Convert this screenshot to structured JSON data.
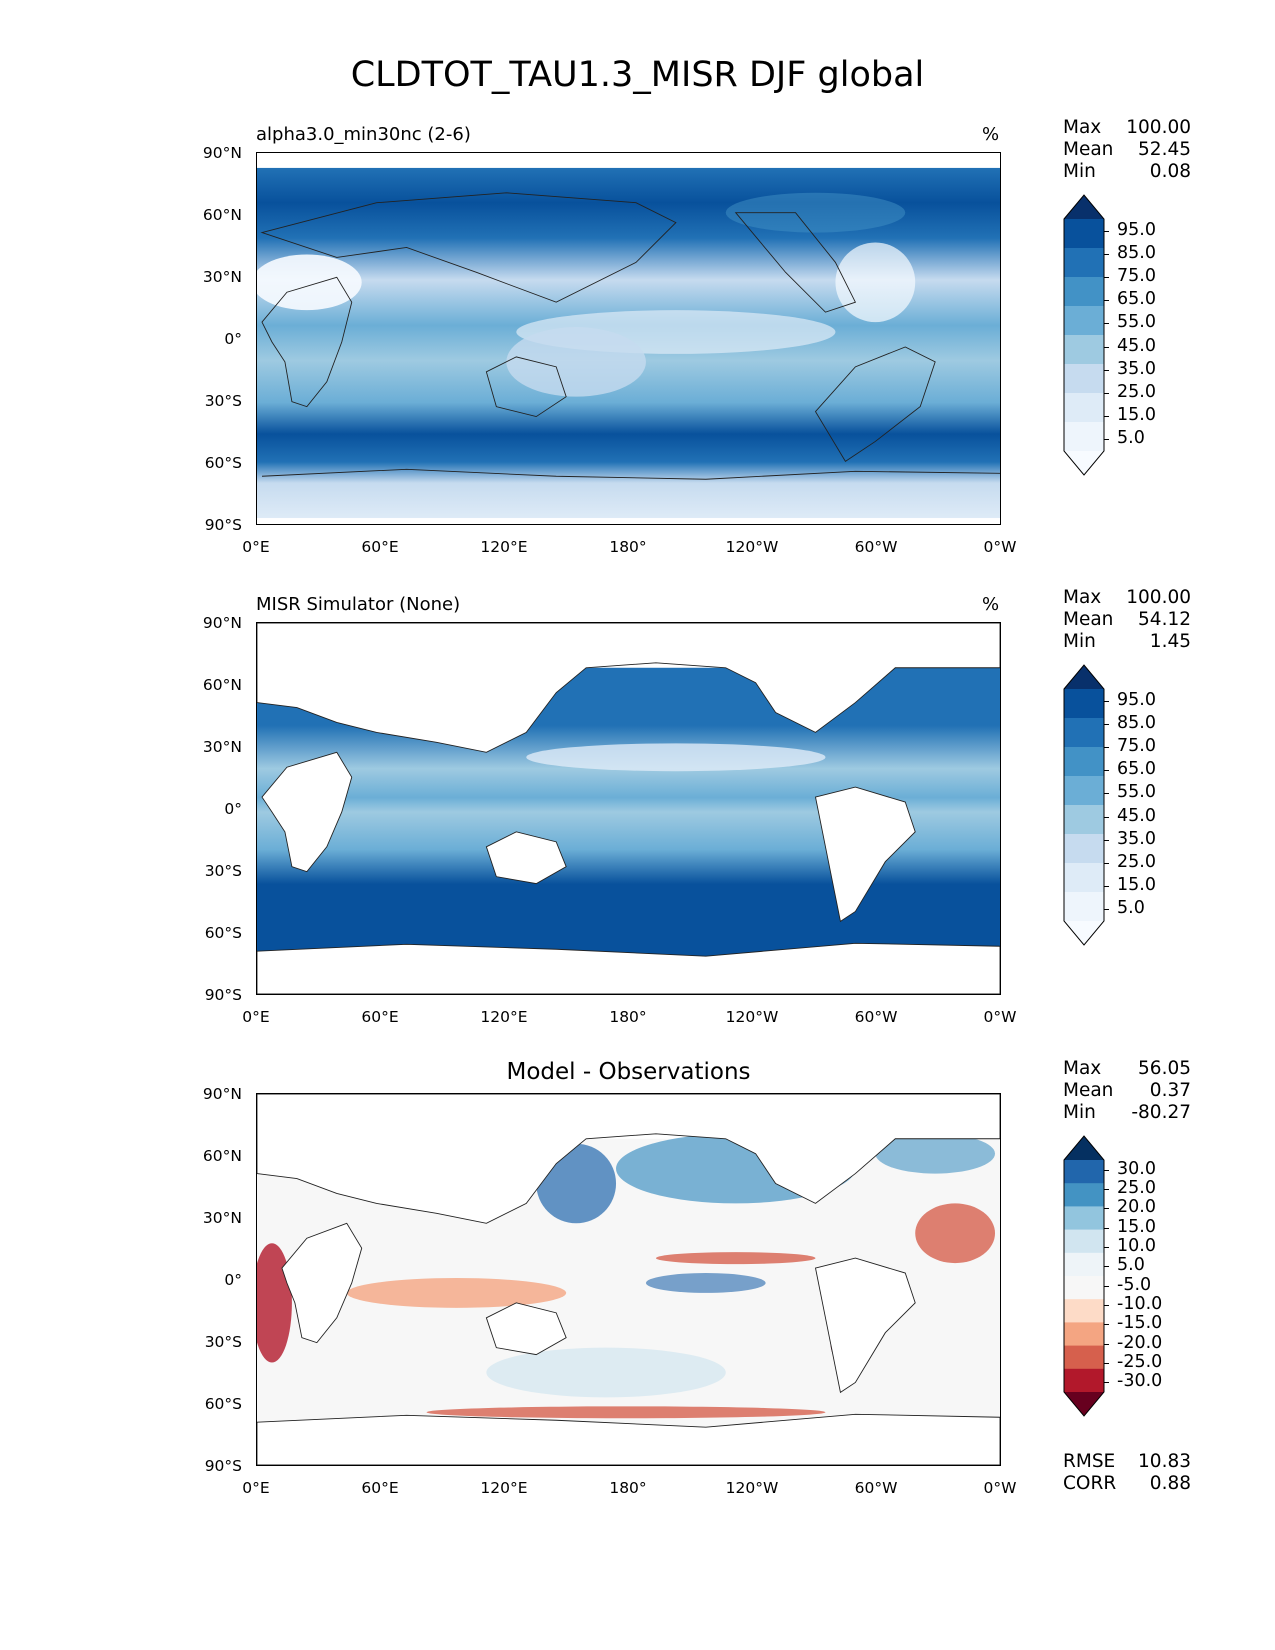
{
  "title": "CLDTOT_TAU1.3_MISR DJF global",
  "axes": {
    "lat_ticks": [
      "90°N",
      "60°N",
      "30°N",
      "0°",
      "30°S",
      "60°S",
      "90°S"
    ],
    "lon_ticks": [
      "0°E",
      "60°E",
      "120°E",
      "180°",
      "120°W",
      "60°W",
      "0°W"
    ]
  },
  "panels": [
    {
      "title": "alpha3.0_min30nc (2-6)",
      "units": "%",
      "stats": [
        {
          "label": "Max",
          "value": "100.00"
        },
        {
          "label": "Mean",
          "value": "52.45"
        },
        {
          "label": "Min",
          "value": "0.08"
        }
      ],
      "colorbar_labels": [
        "95.0",
        "85.0",
        "75.0",
        "65.0",
        "55.0",
        "45.0",
        "35.0",
        "25.0",
        "15.0",
        "5.0"
      ],
      "colorbar_colors": [
        "#08306b",
        "#08519c",
        "#2171b5",
        "#4292c6",
        "#6baed6",
        "#9ecae1",
        "#c6dbef",
        "#deebf7",
        "#eef5fc",
        "#f7fbff"
      ]
    },
    {
      "title": "MISR Simulator (None)",
      "units": "%",
      "stats": [
        {
          "label": "Max",
          "value": "100.00"
        },
        {
          "label": "Mean",
          "value": "54.12"
        },
        {
          "label": "Min",
          "value": "1.45"
        }
      ],
      "colorbar_labels": [
        "95.0",
        "85.0",
        "75.0",
        "65.0",
        "55.0",
        "45.0",
        "35.0",
        "25.0",
        "15.0",
        "5.0"
      ],
      "colorbar_colors": [
        "#08306b",
        "#08519c",
        "#2171b5",
        "#4292c6",
        "#6baed6",
        "#9ecae1",
        "#c6dbef",
        "#deebf7",
        "#eef5fc",
        "#f7fbff"
      ]
    },
    {
      "title": "Model - Observations",
      "units": "",
      "stats": [
        {
          "label": "Max",
          "value": "56.05"
        },
        {
          "label": "Mean",
          "value": "0.37"
        },
        {
          "label": "Min",
          "value": "-80.27"
        }
      ],
      "colorbar_labels": [
        "30.0",
        "25.0",
        "20.0",
        "15.0",
        "10.0",
        "5.0",
        "-5.0",
        "-10.0",
        "-15.0",
        "-20.0",
        "-25.0",
        "-30.0"
      ],
      "colorbar_colors": [
        "#053061",
        "#2166ac",
        "#4393c3",
        "#92c5de",
        "#d1e5f0",
        "#eef4f8",
        "#f7f7f7",
        "#fddbc7",
        "#f4a582",
        "#d6604d",
        "#b2182b",
        "#67001f"
      ],
      "bottom_stats": [
        {
          "label": "RMSE",
          "value": "10.83"
        },
        {
          "label": "CORR",
          "value": "0.88"
        }
      ]
    }
  ]
}
